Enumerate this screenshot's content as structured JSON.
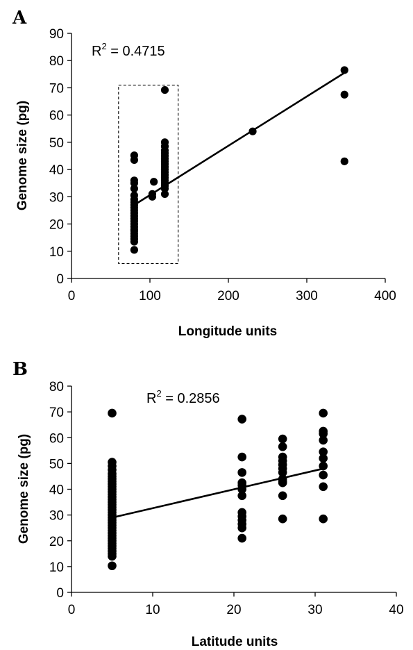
{
  "chart_data": [
    {
      "panel": "A",
      "type": "scatter",
      "xlabel": "Longitude units",
      "ylabel": "Genome size (pg)",
      "xlim": [
        0,
        400
      ],
      "ylim": [
        0,
        90
      ],
      "xticks": [
        0,
        100,
        200,
        300,
        400
      ],
      "yticks": [
        0,
        10,
        20,
        30,
        40,
        50,
        60,
        70,
        80,
        90
      ],
      "annotation": {
        "base": "R",
        "sup": "2",
        "rest": " = 0.4715"
      },
      "trendline": {
        "x": [
          80,
          348
        ],
        "y": [
          27,
          75.5
        ]
      },
      "highlight_box": {
        "x": [
          60,
          136
        ],
        "y": [
          5.5,
          71
        ]
      },
      "points": [
        [
          80,
          45.2
        ],
        [
          80,
          43.5
        ],
        [
          80,
          36
        ],
        [
          80,
          35
        ],
        [
          80,
          33
        ],
        [
          80,
          30.5
        ],
        [
          80,
          29
        ],
        [
          80,
          28
        ],
        [
          80,
          27
        ],
        [
          80,
          26
        ],
        [
          80,
          25
        ],
        [
          80,
          24
        ],
        [
          80,
          23
        ],
        [
          80,
          22
        ],
        [
          80,
          21
        ],
        [
          80,
          20
        ],
        [
          80,
          19
        ],
        [
          80,
          18
        ],
        [
          80,
          17.5
        ],
        [
          80,
          16.5
        ],
        [
          80,
          15.5
        ],
        [
          80,
          14.5
        ],
        [
          80,
          13.5
        ],
        [
          80,
          10.5
        ],
        [
          103,
          31
        ],
        [
          103,
          30
        ],
        [
          105,
          35.5
        ],
        [
          119,
          69.2
        ],
        [
          119,
          50
        ],
        [
          119,
          48.5
        ],
        [
          119,
          47
        ],
        [
          119,
          46
        ],
        [
          119,
          45
        ],
        [
          119,
          44
        ],
        [
          119,
          43
        ],
        [
          119,
          42
        ],
        [
          119,
          41
        ],
        [
          119,
          40
        ],
        [
          119,
          39
        ],
        [
          119,
          38
        ],
        [
          119,
          37
        ],
        [
          119,
          36
        ],
        [
          119,
          35
        ],
        [
          119,
          34
        ],
        [
          119,
          33
        ],
        [
          119,
          31
        ],
        [
          231,
          54
        ],
        [
          348,
          76.5
        ],
        [
          348,
          67.5
        ],
        [
          348,
          43
        ]
      ]
    },
    {
      "panel": "B",
      "type": "scatter",
      "xlabel": "Latitude units",
      "ylabel": "Genome size (pg)",
      "xlim": [
        0,
        40
      ],
      "ylim": [
        0,
        80
      ],
      "xticks": [
        0,
        10,
        20,
        30,
        40
      ],
      "yticks": [
        0,
        10,
        20,
        30,
        40,
        50,
        60,
        70,
        80
      ],
      "annotation": {
        "base": "R",
        "sup": "2",
        "rest": " = 0.2856"
      },
      "trendline": {
        "x": [
          5,
          31
        ],
        "y": [
          29,
          48
        ]
      },
      "points": [
        [
          5,
          69.5
        ],
        [
          5,
          50.5
        ],
        [
          5,
          49
        ],
        [
          5,
          47.5
        ],
        [
          5,
          46
        ],
        [
          5,
          45
        ],
        [
          5,
          44
        ],
        [
          5,
          43
        ],
        [
          5,
          42
        ],
        [
          5,
          41
        ],
        [
          5,
          40
        ],
        [
          5,
          39
        ],
        [
          5,
          38
        ],
        [
          5,
          37
        ],
        [
          5,
          36
        ],
        [
          5,
          35
        ],
        [
          5,
          34
        ],
        [
          5,
          33
        ],
        [
          5,
          32
        ],
        [
          5,
          31
        ],
        [
          5,
          30
        ],
        [
          5,
          29
        ],
        [
          5,
          28
        ],
        [
          5,
          27
        ],
        [
          5,
          26
        ],
        [
          5,
          25
        ],
        [
          5,
          24
        ],
        [
          5,
          23
        ],
        [
          5,
          22
        ],
        [
          5,
          21
        ],
        [
          5,
          20
        ],
        [
          5,
          19
        ],
        [
          5,
          18
        ],
        [
          5,
          17
        ],
        [
          5,
          16
        ],
        [
          5,
          15
        ],
        [
          5,
          14
        ],
        [
          5,
          10.3
        ],
        [
          21,
          67.2
        ],
        [
          21,
          52.5
        ],
        [
          21,
          46.5
        ],
        [
          21,
          42.5
        ],
        [
          21,
          41.5
        ],
        [
          21,
          40
        ],
        [
          21,
          37.5
        ],
        [
          21,
          31
        ],
        [
          21,
          29.5
        ],
        [
          21,
          28
        ],
        [
          21,
          26.5
        ],
        [
          21,
          25
        ],
        [
          21,
          21
        ],
        [
          26,
          59.5
        ],
        [
          26,
          56.5
        ],
        [
          26,
          52.5
        ],
        [
          26,
          51
        ],
        [
          26,
          49.5
        ],
        [
          26,
          48
        ],
        [
          26,
          46.5
        ],
        [
          26,
          44
        ],
        [
          26,
          43
        ],
        [
          26,
          42.5
        ],
        [
          26,
          37.5
        ],
        [
          26,
          28.5
        ],
        [
          31,
          69.5
        ],
        [
          31,
          62.5
        ],
        [
          31,
          61.5
        ],
        [
          31,
          59
        ],
        [
          31,
          54.5
        ],
        [
          31,
          52
        ],
        [
          31,
          49
        ],
        [
          31,
          45.5
        ],
        [
          31,
          41
        ],
        [
          31,
          28.5
        ]
      ]
    }
  ]
}
